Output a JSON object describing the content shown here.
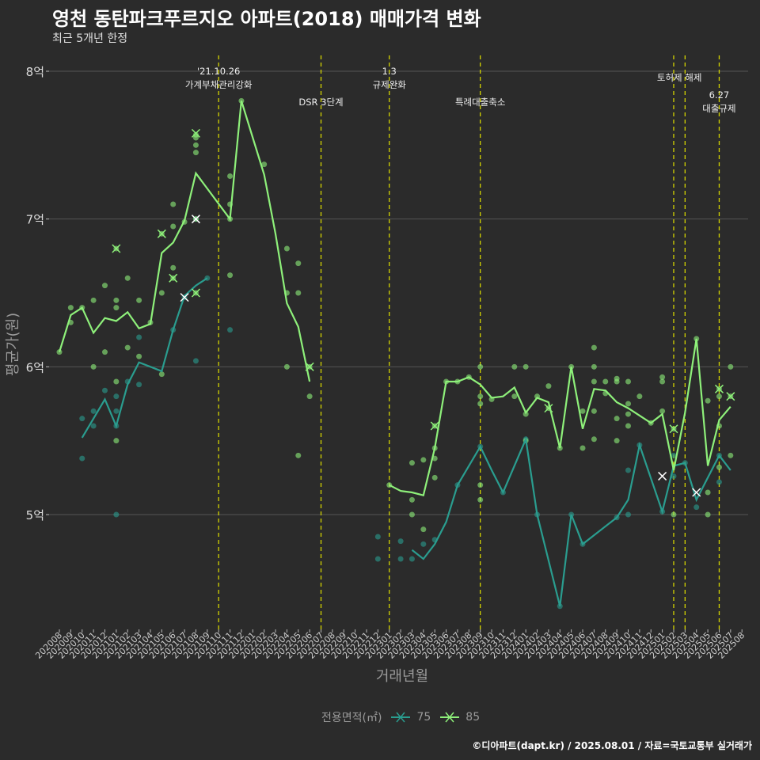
{
  "title": "영천 동탄파크푸르지오 아파트(2018) 매매가격 변화",
  "subtitle": "최근 5개년 한정",
  "caption": "©디아파트(dapt.kr) / 2025.08.01 / 자료=국토교통부 실거래가",
  "legend": {
    "title": "전용면적(㎡)"
  },
  "colors": {
    "background": "#2b2b2b",
    "grid": "#555555",
    "vline": "#d4d400",
    "s75": "#2a9d8f",
    "s85": "#8ef07a",
    "axis_text": "#9a9a9a"
  },
  "chart_data": {
    "type": "line",
    "xlabel": "거래년월",
    "ylabel": "평균가(원)",
    "ylim": [
      4.25,
      8.1
    ],
    "y_unit": "억",
    "y_ticks": [
      {
        "value": 5,
        "label": "5억"
      },
      {
        "value": 6,
        "label": "6억"
      },
      {
        "value": 7,
        "label": "7억"
      },
      {
        "value": 8,
        "label": "8억"
      }
    ],
    "x": [
      "202008",
      "202009",
      "202010",
      "202011",
      "202012",
      "202101",
      "202102",
      "202103",
      "202104",
      "202105",
      "202106",
      "202107",
      "202108",
      "202109",
      "202110",
      "202111",
      "202112",
      "202201",
      "202202",
      "202203",
      "202204",
      "202205",
      "202206",
      "202207",
      "202208",
      "202209",
      "202210",
      "202211",
      "202212",
      "202301",
      "202302",
      "202303",
      "202304",
      "202305",
      "202306",
      "202307",
      "202308",
      "202309",
      "202310",
      "202311",
      "202312",
      "202401",
      "202402",
      "202403",
      "202404",
      "202405",
      "202406",
      "202407",
      "202408",
      "202409",
      "202410",
      "202411",
      "202412",
      "202501",
      "202502",
      "202503",
      "202504",
      "202505",
      "202506",
      "202507",
      "202508"
    ],
    "series": [
      {
        "name": "75",
        "avg": [
          [
            "202010",
            5.52
          ],
          [
            "202011",
            5.65
          ],
          [
            "202012",
            5.78
          ],
          [
            "202101",
            5.6
          ],
          [
            "202102",
            5.88
          ],
          [
            "202103",
            6.03
          ],
          [
            "202104",
            6.0
          ],
          [
            "202105",
            5.97
          ],
          [
            "202106",
            6.25
          ],
          [
            "202107",
            6.48
          ],
          [
            "202108",
            6.55
          ],
          [
            "202109",
            6.6
          ],
          [
            "202303",
            4.76
          ],
          [
            "202304",
            4.7
          ],
          [
            "202305",
            4.8
          ],
          [
            "202306",
            4.95
          ],
          [
            "202307",
            5.2
          ],
          [
            "202309",
            5.46
          ],
          [
            "202310",
            5.3
          ],
          [
            "202311",
            5.15
          ],
          [
            "202401",
            5.51
          ],
          [
            "202402",
            5.0
          ],
          [
            "202404",
            4.38
          ],
          [
            "202405",
            5.0
          ],
          [
            "202406",
            4.8
          ],
          [
            "202409",
            4.98
          ],
          [
            "202410",
            5.1
          ],
          [
            "202411",
            5.47
          ],
          [
            "202501",
            5.02
          ],
          [
            "202502",
            5.33
          ],
          [
            "202503",
            5.35
          ],
          [
            "202504",
            5.1
          ],
          [
            "202506",
            5.4
          ],
          [
            "202507",
            5.3
          ]
        ],
        "points": [
          [
            "202010",
            5.38
          ],
          [
            "202010",
            5.65
          ],
          [
            "202011",
            5.6
          ],
          [
            "202011",
            5.7
          ],
          [
            "202012",
            5.84
          ],
          [
            "202101",
            5.0
          ],
          [
            "202101",
            5.6
          ],
          [
            "202101",
            5.7
          ],
          [
            "202101",
            5.8
          ],
          [
            "202102",
            5.9
          ],
          [
            "202103",
            5.88
          ],
          [
            "202103",
            6.2
          ],
          [
            "202106",
            6.25
          ],
          [
            "202107",
            6.47
          ],
          [
            "202108",
            7.0
          ],
          [
            "202108",
            6.04
          ],
          [
            "202109",
            6.6
          ],
          [
            "202111",
            6.25
          ],
          [
            "202212",
            4.85
          ],
          [
            "202212",
            4.7
          ],
          [
            "202302",
            4.82
          ],
          [
            "202302",
            4.7
          ],
          [
            "202303",
            4.7
          ],
          [
            "202304",
            4.8
          ],
          [
            "202305",
            4.83
          ],
          [
            "202307",
            5.2
          ],
          [
            "202309",
            5.46
          ],
          [
            "202311",
            5.15
          ],
          [
            "202401",
            5.51
          ],
          [
            "202402",
            5.0
          ],
          [
            "202404",
            4.38
          ],
          [
            "202405",
            5.0
          ],
          [
            "202406",
            4.8
          ],
          [
            "202409",
            4.98
          ],
          [
            "202410",
            5.0
          ],
          [
            "202410",
            5.3
          ],
          [
            "202411",
            5.47
          ],
          [
            "202501",
            5.02
          ],
          [
            "202502",
            5.4
          ],
          [
            "202502",
            5.26
          ],
          [
            "202503",
            5.35
          ],
          [
            "202504",
            5.05
          ],
          [
            "202506",
            5.22
          ],
          [
            "202506",
            5.4
          ]
        ]
      },
      {
        "name": "85",
        "avg": [
          [
            "202008",
            6.1
          ],
          [
            "202009",
            6.35
          ],
          [
            "202010",
            6.4
          ],
          [
            "202011",
            6.23
          ],
          [
            "202012",
            6.33
          ],
          [
            "202101",
            6.31
          ],
          [
            "202102",
            6.37
          ],
          [
            "202103",
            6.26
          ],
          [
            "202104",
            6.29
          ],
          [
            "202105",
            6.77
          ],
          [
            "202106",
            6.84
          ],
          [
            "202107",
            6.99
          ],
          [
            "202108",
            7.31
          ],
          [
            "202111",
            7.0
          ],
          [
            "202112",
            7.8
          ],
          [
            "202201",
            7.55
          ],
          [
            "202202",
            7.3
          ],
          [
            "202203",
            6.9
          ],
          [
            "202204",
            6.43
          ],
          [
            "202205",
            6.27
          ],
          [
            "202206",
            5.9
          ],
          [
            "202301",
            5.2
          ],
          [
            "202302",
            5.16
          ],
          [
            "202303",
            5.15
          ],
          [
            "202304",
            5.13
          ],
          [
            "202305",
            5.45
          ],
          [
            "202306",
            5.9
          ],
          [
            "202307",
            5.9
          ],
          [
            "202308",
            5.93
          ],
          [
            "202309",
            5.88
          ],
          [
            "202310",
            5.79
          ],
          [
            "202311",
            5.8
          ],
          [
            "202312",
            5.86
          ],
          [
            "202401",
            5.69
          ],
          [
            "202402",
            5.79
          ],
          [
            "202403",
            5.76
          ],
          [
            "202404",
            5.45
          ],
          [
            "202405",
            6.0
          ],
          [
            "202406",
            5.58
          ],
          [
            "202407",
            5.85
          ],
          [
            "202408",
            5.84
          ],
          [
            "202409",
            5.76
          ],
          [
            "202410",
            5.72
          ],
          [
            "202411",
            5.67
          ],
          [
            "202412",
            5.62
          ],
          [
            "202501",
            5.68
          ],
          [
            "202502",
            5.3
          ],
          [
            "202503",
            5.69
          ],
          [
            "202504",
            6.19
          ],
          [
            "202505",
            5.33
          ],
          [
            "202506",
            5.64
          ],
          [
            "202507",
            5.73
          ]
        ],
        "points": [
          [
            "202008",
            6.1
          ],
          [
            "202009",
            6.4
          ],
          [
            "202009",
            6.3
          ],
          [
            "202010",
            6.4
          ],
          [
            "202011",
            6.0
          ],
          [
            "202011",
            6.45
          ],
          [
            "202012",
            6.55
          ],
          [
            "202012",
            6.1
          ],
          [
            "202101",
            6.8
          ],
          [
            "202101",
            6.45
          ],
          [
            "202101",
            6.4
          ],
          [
            "202101",
            5.5
          ],
          [
            "202101",
            5.9
          ],
          [
            "202102",
            6.6
          ],
          [
            "202102",
            6.13
          ],
          [
            "202103",
            6.45
          ],
          [
            "202103",
            6.07
          ],
          [
            "202104",
            6.3
          ],
          [
            "202105",
            6.9
          ],
          [
            "202105",
            6.5
          ],
          [
            "202105",
            5.95
          ],
          [
            "202106",
            6.95
          ],
          [
            "202106",
            7.1
          ],
          [
            "202106",
            6.67
          ],
          [
            "202106",
            6.6
          ],
          [
            "202107",
            6.98
          ],
          [
            "202108",
            7.57
          ],
          [
            "202108",
            7.55
          ],
          [
            "202108",
            7.5
          ],
          [
            "202108",
            7.45
          ],
          [
            "202108",
            7.0
          ],
          [
            "202108",
            6.5
          ],
          [
            "202111",
            7.0
          ],
          [
            "202111",
            7.29
          ],
          [
            "202111",
            6.62
          ],
          [
            "202111",
            7.1
          ],
          [
            "202112",
            7.8
          ],
          [
            "202202",
            7.37
          ],
          [
            "202204",
            6.8
          ],
          [
            "202204",
            6.5
          ],
          [
            "202204",
            6.0
          ],
          [
            "202205",
            6.7
          ],
          [
            "202205",
            6.5
          ],
          [
            "202205",
            5.4
          ],
          [
            "202206",
            6.0
          ],
          [
            "202206",
            5.8
          ],
          [
            "202301",
            5.2
          ],
          [
            "202303",
            5.35
          ],
          [
            "202303",
            5.1
          ],
          [
            "202303",
            5.0
          ],
          [
            "202304",
            5.37
          ],
          [
            "202304",
            4.9
          ],
          [
            "202305",
            5.45
          ],
          [
            "202305",
            5.38
          ],
          [
            "202305",
            5.6
          ],
          [
            "202305",
            5.25
          ],
          [
            "202306",
            5.9
          ],
          [
            "202307",
            5.9
          ],
          [
            "202308",
            5.93
          ],
          [
            "202309",
            6.0
          ],
          [
            "202309",
            5.8
          ],
          [
            "202309",
            5.75
          ],
          [
            "202309",
            5.2
          ],
          [
            "202309",
            5.1
          ],
          [
            "202310",
            5.78
          ],
          [
            "202312",
            6.0
          ],
          [
            "202312",
            5.8
          ],
          [
            "202401",
            6.0
          ],
          [
            "202401",
            5.68
          ],
          [
            "202401",
            5.5
          ],
          [
            "202402",
            5.8
          ],
          [
            "202403",
            5.87
          ],
          [
            "202403",
            5.72
          ],
          [
            "202404",
            5.45
          ],
          [
            "202405",
            6.0
          ],
          [
            "202406",
            5.7
          ],
          [
            "202406",
            5.45
          ],
          [
            "202407",
            6.13
          ],
          [
            "202407",
            6.0
          ],
          [
            "202407",
            5.9
          ],
          [
            "202407",
            5.7
          ],
          [
            "202407",
            5.51
          ],
          [
            "202408",
            5.9
          ],
          [
            "202408",
            5.82
          ],
          [
            "202409",
            5.92
          ],
          [
            "202409",
            5.9
          ],
          [
            "202409",
            5.65
          ],
          [
            "202409",
            5.5
          ],
          [
            "202410",
            5.9
          ],
          [
            "202410",
            5.75
          ],
          [
            "202410",
            5.68
          ],
          [
            "202410",
            5.6
          ],
          [
            "202411",
            5.8
          ],
          [
            "202412",
            5.62
          ],
          [
            "202501",
            5.93
          ],
          [
            "202501",
            5.9
          ],
          [
            "202501",
            5.7
          ],
          [
            "202502",
            5.58
          ],
          [
            "202502",
            5.0
          ],
          [
            "202504",
            6.19
          ],
          [
            "202505",
            5.77
          ],
          [
            "202505",
            5.15
          ],
          [
            "202505",
            5.0
          ],
          [
            "202506",
            5.85
          ],
          [
            "202506",
            5.8
          ],
          [
            "202506",
            5.6
          ],
          [
            "202506",
            5.32
          ],
          [
            "202507",
            6.0
          ],
          [
            "202507",
            5.8
          ],
          [
            "202507",
            5.4
          ]
        ],
        "crosses": [
          [
            "202101",
            6.8
          ],
          [
            "202105",
            6.9
          ],
          [
            "202106",
            6.6
          ],
          [
            "202108",
            7.58
          ],
          [
            "202108",
            6.5
          ],
          [
            "202206",
            6.0
          ],
          [
            "202305",
            5.6
          ],
          [
            "202403",
            5.72
          ],
          [
            "202502",
            5.58
          ],
          [
            "202506",
            5.85
          ],
          [
            "202507",
            5.8
          ]
        ]
      }
    ],
    "crosses_75": [
      [
        "202107",
        6.47
      ],
      [
        "202108",
        7.0
      ],
      [
        "202501",
        5.26
      ],
      [
        "202504",
        5.15
      ]
    ],
    "annotations": [
      {
        "x": "202110",
        "lines": [
          "'21.10.26",
          "가계부채관리강화"
        ],
        "level": 1
      },
      {
        "x": "202207",
        "lines": [
          "DSR 3단계"
        ],
        "level": 2
      },
      {
        "x": "202301",
        "lines": [
          "1.3",
          "규제완화"
        ],
        "level": 1
      },
      {
        "x": "202309",
        "lines": [
          "특례대출축소"
        ],
        "level": 2
      },
      {
        "x": "202502",
        "lines": [],
        "level": 0
      },
      {
        "x": "202503",
        "lines": [
          "토허제 해제"
        ],
        "level": 1,
        "label_center_x": "202502.5"
      },
      {
        "x": "202506",
        "lines": [
          "6.27",
          "대출규제"
        ],
        "level": 2
      }
    ]
  }
}
